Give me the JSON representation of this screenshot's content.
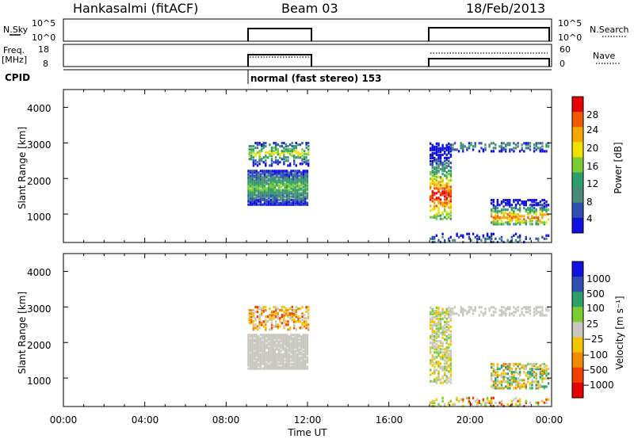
{
  "header": {
    "station": "Hankasalmi (fitACF)",
    "beam": "Beam 03",
    "date": "18/Feb/2013"
  },
  "top_panels": {
    "nsky_label": "N.Sky",
    "nsky_ticks": [
      "10^5",
      "10^0"
    ],
    "nsearch_label": "N.Search",
    "nsearch_ticks": [
      "10^5",
      "10^0"
    ],
    "freq_label": "Freq.",
    "freq_unit": "[MHz]",
    "freq_ticks": [
      "18",
      "8"
    ],
    "nave_label": "Nave",
    "nave_ticks": [
      "60",
      "0"
    ],
    "cpid_label": "CPID",
    "cpid_text": "normal (fast stereo) 153"
  },
  "power_panel": {
    "ylabel": "Slant Range [km]",
    "yticks": [
      "4000",
      "3000",
      "2000",
      "1000"
    ],
    "colorbar_label": "Power [dB]",
    "colorbar_ticks": [
      "28",
      "24",
      "20",
      "16",
      "12",
      "8",
      "4"
    ],
    "colors": [
      "#e60000",
      "#f05a00",
      "#f5a800",
      "#f0e000",
      "#7acc33",
      "#2e9e6a",
      "#4a8a7a",
      "#3050b0",
      "#1010e0"
    ]
  },
  "velocity_panel": {
    "ylabel": "Slant Range [km]",
    "yticks": [
      "4000",
      "3000",
      "2000",
      "1000"
    ],
    "colorbar_label": "Velocity [m s⁻¹]",
    "colorbar_ticks": [
      "1000",
      "500",
      "100",
      "25",
      "−25",
      "−100",
      "−500",
      "−1000"
    ],
    "colors": [
      "#1010e0",
      "#3050b0",
      "#2e9e6a",
      "#7acc33",
      "#c8c8c0",
      "#f5c400",
      "#f08a00",
      "#f04000",
      "#e60000"
    ]
  },
  "x_axis": {
    "ticks": [
      "00:00",
      "04:00",
      "08:00",
      "12:00",
      "16:00",
      "20:00",
      "00:00"
    ],
    "label": "Time UT"
  },
  "chart_data": {
    "type": "heatmap",
    "title": "Hankasalmi (fitACF) Beam 03 18/Feb/2013",
    "xlabel": "Time UT",
    "ylabel": "Slant Range [km]",
    "xlim": [
      0,
      24
    ],
    "ylim": [
      200,
      4500
    ],
    "x_ticks": [
      "00:00",
      "04:00",
      "08:00",
      "12:00",
      "16:00",
      "20:00",
      "00:00"
    ],
    "y_ticks": [
      1000,
      2000,
      3000,
      4000
    ],
    "operation_periods_hours": [
      [
        9.0,
        12.0
      ],
      [
        18.0,
        24.0
      ]
    ],
    "frequency_MHz_approx": 12,
    "power_scale_dB": [
      4,
      8,
      12,
      16,
      20,
      24,
      28
    ],
    "velocity_scale_ms": [
      -1000,
      -500,
      -100,
      -25,
      25,
      100,
      500,
      1000
    ],
    "echo_regions": [
      {
        "period": "09:00-12:00",
        "range_km": [
          1300,
          2200
        ],
        "power_dB": "4-20",
        "velocity": "~0"
      },
      {
        "period": "09:00-12:00",
        "range_km": [
          2500,
          3000
        ],
        "power_dB": "4-16",
        "velocity": "-100 to -500"
      },
      {
        "period": "18:00-19:00",
        "range_km": [
          900,
          3000
        ],
        "power_dB": "4-28",
        "velocity": "~0"
      },
      {
        "period": "19:00-24:00",
        "range_km": [
          2800,
          3000
        ],
        "power_dB": "4-8",
        "velocity": "~0"
      },
      {
        "period": "21:00-24:00",
        "range_km": [
          800,
          1400
        ],
        "power_dB": "4-24",
        "velocity": "-500 to 500"
      }
    ]
  }
}
